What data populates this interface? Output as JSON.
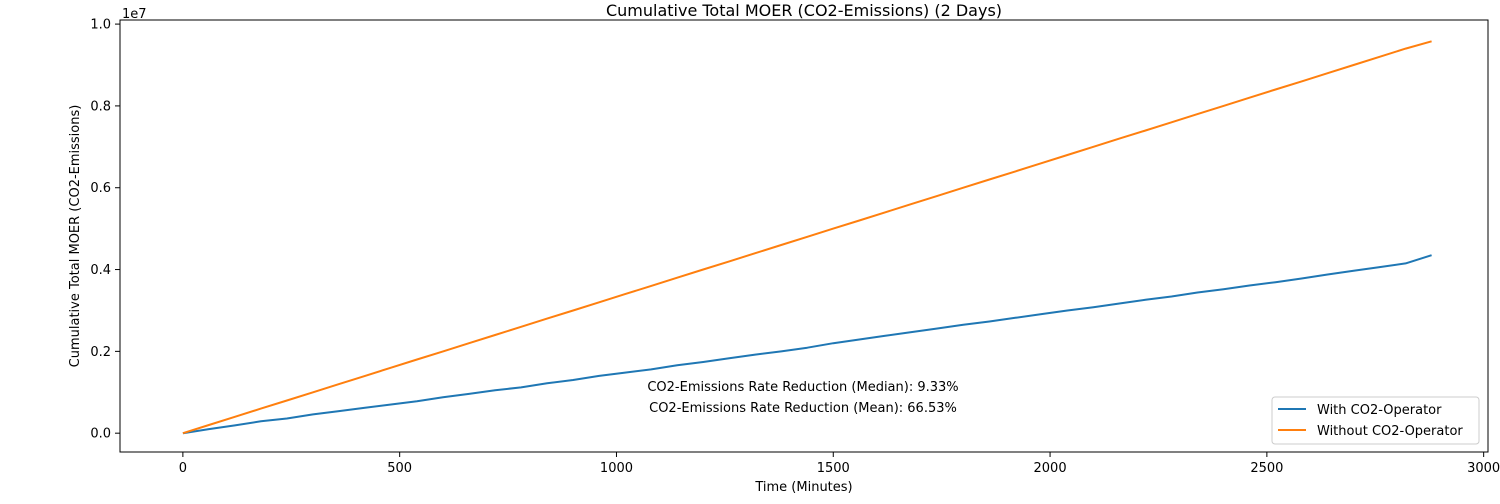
{
  "chart_data": {
    "type": "line",
    "title": "Cumulative Total MOER (CO2-Emissions) (2 Days)",
    "xlabel": "Time (Minutes)",
    "ylabel": "Cumulative Total MOER (CO2-Emissions)",
    "y_offset_label": "1e7",
    "xlim": [
      -145,
      3010
    ],
    "ylim": [
      -460000,
      10100000
    ],
    "x_ticks": [
      0,
      500,
      1000,
      1500,
      2000,
      2500,
      3000
    ],
    "x_tick_labels": [
      "0",
      "500",
      "1000",
      "1500",
      "2000",
      "2500",
      "3000"
    ],
    "y_ticks": [
      0,
      2000000,
      4000000,
      6000000,
      8000000,
      10000000
    ],
    "y_tick_labels": [
      "0.0",
      "0.2",
      "0.4",
      "0.6",
      "0.8",
      "1.0"
    ],
    "grid": false,
    "legend_position": "bottom-right",
    "series": [
      {
        "name": "With CO2-Operator",
        "color": "#1f77b4",
        "x": [
          0,
          60,
          120,
          180,
          240,
          300,
          360,
          420,
          480,
          540,
          600,
          660,
          720,
          780,
          840,
          900,
          960,
          1020,
          1080,
          1140,
          1200,
          1260,
          1320,
          1380,
          1440,
          1500,
          1560,
          1620,
          1680,
          1740,
          1800,
          1860,
          1920,
          1980,
          2040,
          2100,
          2160,
          2220,
          2280,
          2340,
          2400,
          2460,
          2520,
          2580,
          2640,
          2700,
          2760,
          2820,
          2880
        ],
        "y": [
          0,
          100000,
          190000,
          290000,
          360000,
          460000,
          540000,
          620000,
          700000,
          780000,
          880000,
          960000,
          1050000,
          1120000,
          1220000,
          1300000,
          1400000,
          1480000,
          1560000,
          1660000,
          1740000,
          1830000,
          1920000,
          2000000,
          2090000,
          2200000,
          2290000,
          2380000,
          2470000,
          2560000,
          2650000,
          2730000,
          2820000,
          2910000,
          3000000,
          3080000,
          3170000,
          3260000,
          3340000,
          3440000,
          3520000,
          3610000,
          3690000,
          3780000,
          3880000,
          3970000,
          4060000,
          4150000,
          4350000
        ]
      },
      {
        "name": "Without CO2-Operator",
        "color": "#ff7f0e",
        "x": [
          0,
          60,
          120,
          180,
          240,
          300,
          360,
          420,
          480,
          540,
          600,
          660,
          720,
          780,
          840,
          900,
          960,
          1020,
          1080,
          1140,
          1200,
          1260,
          1320,
          1380,
          1440,
          1500,
          1560,
          1620,
          1680,
          1740,
          1800,
          1860,
          1920,
          1980,
          2040,
          2100,
          2160,
          2220,
          2280,
          2340,
          2400,
          2460,
          2520,
          2580,
          2640,
          2700,
          2760,
          2820,
          2880
        ],
        "y": [
          0,
          200000,
          400000,
          600000,
          800000,
          1000000,
          1200000,
          1400000,
          1600000,
          1800000,
          2000000,
          2200000,
          2400000,
          2600000,
          2800000,
          3000000,
          3200000,
          3400000,
          3600000,
          3800000,
          4000000,
          4200000,
          4400000,
          4600000,
          4800000,
          5000000,
          5200000,
          5400000,
          5600000,
          5800000,
          6000000,
          6200000,
          6400000,
          6600000,
          6800000,
          7000000,
          7200000,
          7400000,
          7600000,
          7800000,
          8000000,
          8200000,
          8400000,
          8600000,
          8800000,
          9000000,
          9200000,
          9400000,
          9580000
        ]
      }
    ],
    "annotations": [
      "CO2-Emissions Rate Reduction (Median): 9.33%",
      "CO2-Emissions Rate Reduction (Mean): 66.53%"
    ]
  }
}
